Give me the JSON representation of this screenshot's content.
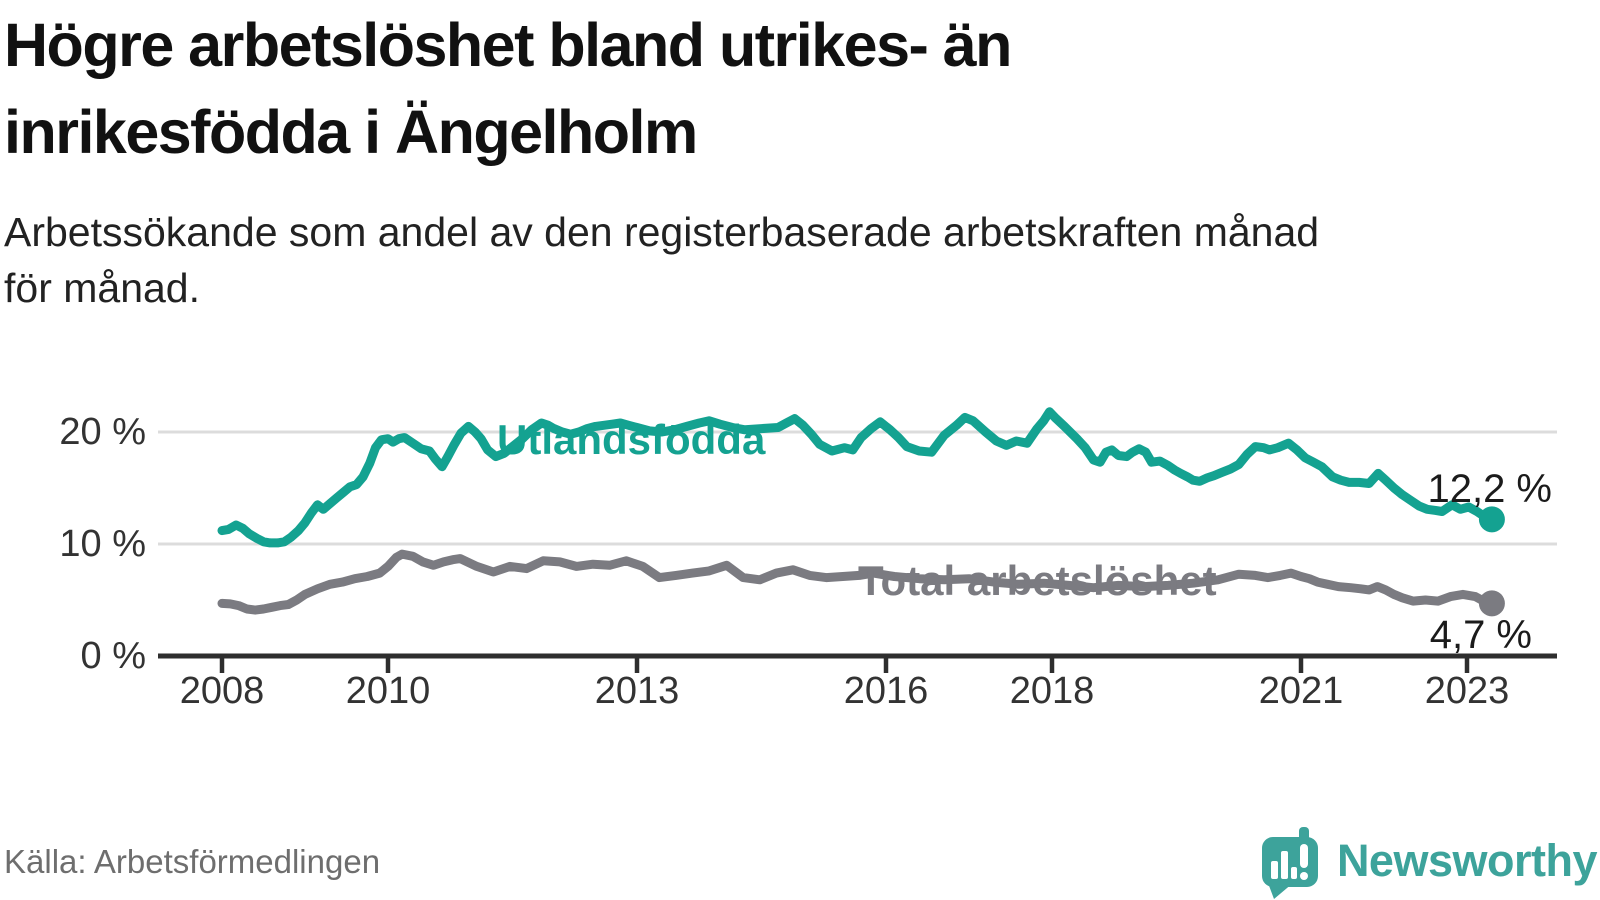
{
  "header": {
    "title": "Högre arbetslöshet bland utrikes- än\ninrikesfödda i Ängelholm",
    "subtitle": "Arbetssökande som andel av den registerbaserade arbetskraften månad\nför månad."
  },
  "footer": {
    "source": "Källa: Arbetsförmedlingen",
    "brand": "Newsworthy"
  },
  "colors": {
    "accent_teal": "#14a291",
    "series_gray": "#7b7b81",
    "grid": "#dcdcdc",
    "axis": "#2e2e2e",
    "text_dark": "#1b1b1b",
    "axis_text": "#333333",
    "logo_teal": "#3da39b"
  },
  "chart_data": {
    "type": "line",
    "title": "Högre arbetslöshet bland utrikes- än inrikesfödda i Ängelholm",
    "subtitle": "Arbetssökande som andel av den registerbaserade arbetskraften månad för månad.",
    "xlabel": "",
    "ylabel": "",
    "x_ticks": [
      2008,
      2010,
      2013,
      2016,
      2018,
      2021,
      2023
    ],
    "y_ticks": [
      0,
      10,
      20
    ],
    "y_tick_suffix": " %",
    "ylim": [
      0,
      24
    ],
    "xlim": [
      2007.4,
      2024.0
    ],
    "grid": "horizontal",
    "legend_position": "inline-labels",
    "series": [
      {
        "name": "Utlandsfödda",
        "color": "#14a291",
        "end_label": "12,2 %",
        "end_value": 12.2,
        "points": [
          [
            2008.0,
            11.2
          ],
          [
            2008.08,
            11.3
          ],
          [
            2008.17,
            11.7
          ],
          [
            2008.25,
            11.4
          ],
          [
            2008.33,
            10.9
          ],
          [
            2008.42,
            10.5
          ],
          [
            2008.5,
            10.2
          ],
          [
            2008.58,
            10.1
          ],
          [
            2008.67,
            10.1
          ],
          [
            2008.75,
            10.2
          ],
          [
            2008.83,
            10.6
          ],
          [
            2008.92,
            11.2
          ],
          [
            2009.0,
            11.9
          ],
          [
            2009.08,
            12.8
          ],
          [
            2009.15,
            13.5
          ],
          [
            2009.22,
            13.1
          ],
          [
            2009.3,
            13.6
          ],
          [
            2009.38,
            14.1
          ],
          [
            2009.46,
            14.6
          ],
          [
            2009.54,
            15.1
          ],
          [
            2009.62,
            15.3
          ],
          [
            2009.7,
            16.0
          ],
          [
            2009.78,
            17.2
          ],
          [
            2009.85,
            18.6
          ],
          [
            2009.92,
            19.3
          ],
          [
            2010.0,
            19.4
          ],
          [
            2010.06,
            19.1
          ],
          [
            2010.13,
            19.4
          ],
          [
            2010.2,
            19.5
          ],
          [
            2010.3,
            19.0
          ],
          [
            2010.4,
            18.5
          ],
          [
            2010.5,
            18.3
          ],
          [
            2010.57,
            17.6
          ],
          [
            2010.65,
            16.9
          ],
          [
            2010.72,
            17.8
          ],
          [
            2010.8,
            18.9
          ],
          [
            2010.88,
            19.9
          ],
          [
            2010.97,
            20.5
          ],
          [
            2011.05,
            20.0
          ],
          [
            2011.12,
            19.4
          ],
          [
            2011.2,
            18.4
          ],
          [
            2011.3,
            17.8
          ],
          [
            2011.4,
            18.1
          ],
          [
            2011.5,
            18.7
          ],
          [
            2011.62,
            19.4
          ],
          [
            2011.73,
            20.2
          ],
          [
            2011.85,
            20.8
          ],
          [
            2011.93,
            20.6
          ],
          [
            2012.0,
            20.3
          ],
          [
            2012.1,
            20.0
          ],
          [
            2012.2,
            19.8
          ],
          [
            2012.3,
            20.0
          ],
          [
            2012.4,
            20.3
          ],
          [
            2012.5,
            20.5
          ],
          [
            2012.6,
            20.6
          ],
          [
            2012.7,
            20.7
          ],
          [
            2012.8,
            20.8
          ],
          [
            2012.9,
            20.6
          ],
          [
            2013.0,
            20.4
          ],
          [
            2013.15,
            20.1
          ],
          [
            2013.3,
            20.0
          ],
          [
            2013.45,
            20.2
          ],
          [
            2013.6,
            20.5
          ],
          [
            2013.75,
            20.8
          ],
          [
            2013.87,
            21.0
          ],
          [
            2014.0,
            20.7
          ],
          [
            2014.15,
            20.4
          ],
          [
            2014.3,
            20.2
          ],
          [
            2014.5,
            20.3
          ],
          [
            2014.7,
            20.4
          ],
          [
            2014.8,
            20.8
          ],
          [
            2014.9,
            21.2
          ],
          [
            2015.0,
            20.6
          ],
          [
            2015.1,
            19.8
          ],
          [
            2015.2,
            18.9
          ],
          [
            2015.35,
            18.3
          ],
          [
            2015.5,
            18.6
          ],
          [
            2015.6,
            18.4
          ],
          [
            2015.7,
            19.5
          ],
          [
            2015.82,
            20.3
          ],
          [
            2015.93,
            20.9
          ],
          [
            2016.05,
            20.2
          ],
          [
            2016.15,
            19.5
          ],
          [
            2016.25,
            18.7
          ],
          [
            2016.4,
            18.3
          ],
          [
            2016.55,
            18.2
          ],
          [
            2016.7,
            19.7
          ],
          [
            2016.85,
            20.6
          ],
          [
            2016.95,
            21.3
          ],
          [
            2017.05,
            21.0
          ],
          [
            2017.2,
            20.0
          ],
          [
            2017.33,
            19.2
          ],
          [
            2017.45,
            18.8
          ],
          [
            2017.57,
            19.2
          ],
          [
            2017.7,
            19.0
          ],
          [
            2017.82,
            20.3
          ],
          [
            2017.9,
            21.0
          ],
          [
            2017.97,
            21.8
          ],
          [
            2018.05,
            21.2
          ],
          [
            2018.15,
            20.5
          ],
          [
            2018.3,
            19.4
          ],
          [
            2018.4,
            18.6
          ],
          [
            2018.5,
            17.5
          ],
          [
            2018.58,
            17.3
          ],
          [
            2018.65,
            18.2
          ],
          [
            2018.72,
            18.4
          ],
          [
            2018.8,
            17.9
          ],
          [
            2018.9,
            17.8
          ],
          [
            2018.97,
            18.2
          ],
          [
            2019.05,
            18.5
          ],
          [
            2019.13,
            18.2
          ],
          [
            2019.2,
            17.3
          ],
          [
            2019.3,
            17.4
          ],
          [
            2019.4,
            17.0
          ],
          [
            2019.48,
            16.6
          ],
          [
            2019.55,
            16.3
          ],
          [
            2019.63,
            16.0
          ],
          [
            2019.7,
            15.7
          ],
          [
            2019.78,
            15.6
          ],
          [
            2019.87,
            15.9
          ],
          [
            2019.95,
            16.1
          ],
          [
            2020.05,
            16.4
          ],
          [
            2020.15,
            16.7
          ],
          [
            2020.25,
            17.1
          ],
          [
            2020.35,
            18.0
          ],
          [
            2020.45,
            18.7
          ],
          [
            2020.55,
            18.6
          ],
          [
            2020.62,
            18.4
          ],
          [
            2020.72,
            18.6
          ],
          [
            2020.85,
            19.0
          ],
          [
            2020.95,
            18.4
          ],
          [
            2021.05,
            17.7
          ],
          [
            2021.15,
            17.3
          ],
          [
            2021.25,
            16.9
          ],
          [
            2021.38,
            16.0
          ],
          [
            2021.48,
            15.7
          ],
          [
            2021.58,
            15.5
          ],
          [
            2021.7,
            15.5
          ],
          [
            2021.82,
            15.4
          ],
          [
            2021.93,
            16.3
          ],
          [
            2022.02,
            15.7
          ],
          [
            2022.12,
            15.0
          ],
          [
            2022.22,
            14.4
          ],
          [
            2022.32,
            13.9
          ],
          [
            2022.42,
            13.4
          ],
          [
            2022.52,
            13.1
          ],
          [
            2022.62,
            13.0
          ],
          [
            2022.7,
            12.9
          ],
          [
            2022.82,
            13.5
          ],
          [
            2022.92,
            13.1
          ],
          [
            2023.02,
            13.3
          ],
          [
            2023.12,
            12.9
          ],
          [
            2023.22,
            12.4
          ],
          [
            2023.3,
            12.2
          ]
        ]
      },
      {
        "name": "Total arbetslöshet",
        "color": "#7b7b81",
        "end_label": "4,7 %",
        "end_value": 4.7,
        "points": [
          [
            2008.0,
            4.7
          ],
          [
            2008.1,
            4.65
          ],
          [
            2008.2,
            4.5
          ],
          [
            2008.3,
            4.2
          ],
          [
            2008.4,
            4.1
          ],
          [
            2008.5,
            4.2
          ],
          [
            2008.6,
            4.35
          ],
          [
            2008.7,
            4.5
          ],
          [
            2008.8,
            4.6
          ],
          [
            2008.9,
            5.0
          ],
          [
            2009.0,
            5.5
          ],
          [
            2009.15,
            6.0
          ],
          [
            2009.3,
            6.4
          ],
          [
            2009.45,
            6.6
          ],
          [
            2009.6,
            6.9
          ],
          [
            2009.75,
            7.1
          ],
          [
            2009.9,
            7.4
          ],
          [
            2010.0,
            8.0
          ],
          [
            2010.1,
            8.8
          ],
          [
            2010.17,
            9.1
          ],
          [
            2010.3,
            8.9
          ],
          [
            2010.42,
            8.4
          ],
          [
            2010.55,
            8.1
          ],
          [
            2010.67,
            8.4
          ],
          [
            2010.78,
            8.6
          ],
          [
            2010.87,
            8.7
          ],
          [
            2011.07,
            8.0
          ],
          [
            2011.27,
            7.5
          ],
          [
            2011.47,
            8.0
          ],
          [
            2011.67,
            7.8
          ],
          [
            2011.87,
            8.5
          ],
          [
            2012.07,
            8.4
          ],
          [
            2012.27,
            8.0
          ],
          [
            2012.47,
            8.2
          ],
          [
            2012.67,
            8.1
          ],
          [
            2012.87,
            8.5
          ],
          [
            2013.07,
            8.0
          ],
          [
            2013.27,
            7.0
          ],
          [
            2013.47,
            7.2
          ],
          [
            2013.67,
            7.4
          ],
          [
            2013.87,
            7.6
          ],
          [
            2014.08,
            8.1
          ],
          [
            2014.28,
            7.0
          ],
          [
            2014.48,
            6.8
          ],
          [
            2014.68,
            7.4
          ],
          [
            2014.88,
            7.7
          ],
          [
            2015.08,
            7.2
          ],
          [
            2015.28,
            7.0
          ],
          [
            2015.48,
            7.1
          ],
          [
            2015.68,
            7.2
          ],
          [
            2015.85,
            7.4
          ],
          [
            2016.1,
            7.1
          ],
          [
            2016.4,
            6.9
          ],
          [
            2016.7,
            6.8
          ],
          [
            2017.0,
            6.9
          ],
          [
            2017.3,
            6.6
          ],
          [
            2017.6,
            6.4
          ],
          [
            2017.9,
            6.5
          ],
          [
            2018.2,
            6.3
          ],
          [
            2018.5,
            6.1
          ],
          [
            2018.8,
            6.3
          ],
          [
            2019.1,
            6.2
          ],
          [
            2019.4,
            6.3
          ],
          [
            2019.7,
            6.5
          ],
          [
            2020.0,
            6.8
          ],
          [
            2020.25,
            7.3
          ],
          [
            2020.45,
            7.2
          ],
          [
            2020.6,
            7.0
          ],
          [
            2020.75,
            7.2
          ],
          [
            2020.88,
            7.4
          ],
          [
            2021.0,
            7.1
          ],
          [
            2021.1,
            6.9
          ],
          [
            2021.2,
            6.6
          ],
          [
            2021.32,
            6.4
          ],
          [
            2021.45,
            6.2
          ],
          [
            2021.6,
            6.1
          ],
          [
            2021.72,
            6.0
          ],
          [
            2021.82,
            5.9
          ],
          [
            2021.92,
            6.2
          ],
          [
            2022.02,
            5.9
          ],
          [
            2022.12,
            5.5
          ],
          [
            2022.22,
            5.2
          ],
          [
            2022.35,
            4.9
          ],
          [
            2022.5,
            5.0
          ],
          [
            2022.65,
            4.9
          ],
          [
            2022.8,
            5.3
          ],
          [
            2022.95,
            5.5
          ],
          [
            2023.1,
            5.3
          ],
          [
            2023.2,
            4.9
          ],
          [
            2023.3,
            4.7
          ]
        ]
      }
    ]
  }
}
